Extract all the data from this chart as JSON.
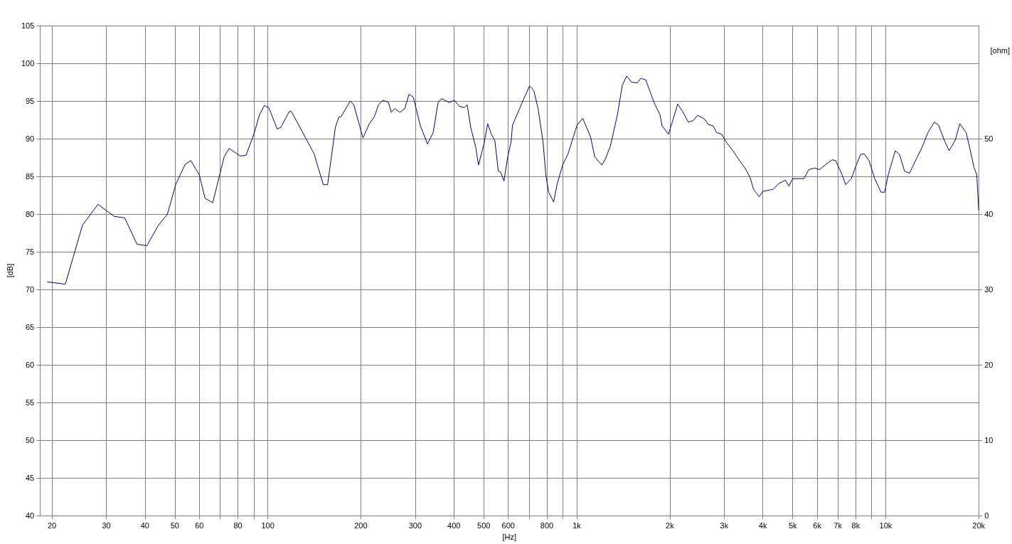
{
  "chart_data": {
    "type": "line",
    "xlabel": "[Hz]",
    "ylabel": "[dB]",
    "y2label": "[ohm]",
    "log": "x",
    "grid": true,
    "marker": "none",
    "line_style": "solid",
    "xlim": [
      18.3,
      20000
    ],
    "xticks": [
      20,
      30,
      40,
      50,
      60,
      {
        "value": 70,
        "label": null
      },
      80,
      {
        "value": 90,
        "label": null
      },
      100,
      200,
      300,
      400,
      500,
      600,
      {
        "value": 700,
        "label": null
      },
      800,
      {
        "value": 900,
        "label": null
      },
      {
        "value": 1000,
        "label": "1k"
      },
      {
        "value": 2000,
        "label": "2k"
      },
      {
        "value": 3000,
        "label": "3k"
      },
      {
        "value": 4000,
        "label": "4k"
      },
      {
        "value": 5000,
        "label": "5k"
      },
      {
        "value": 6000,
        "label": "6k"
      },
      {
        "value": 7000,
        "label": "7k"
      },
      {
        "value": 8000,
        "label": "8k"
      },
      {
        "value": 9000,
        "label": null
      },
      {
        "value": 10000,
        "label": "10k"
      },
      {
        "value": 20000,
        "label": "20k"
      }
    ],
    "ylim": [
      40,
      105
    ],
    "yticks": [
      40,
      45,
      50,
      55,
      60,
      65,
      70,
      75,
      80,
      85,
      90,
      95,
      100,
      105
    ],
    "y2lim": [
      0,
      65
    ],
    "y2ticks": [
      0,
      10,
      20,
      30,
      40,
      50
    ],
    "series": [
      {
        "color": "#000080",
        "x": [
          19.3,
          22.1,
          25.1,
          28.2,
          31.8,
          34.4,
          37.7,
          40.6,
          44.2,
          47.3,
          50.4,
          54.0,
          56.3,
          60.0,
          62.6,
          66.3,
          72.2,
          74.9,
          81.5,
          85.0,
          90.1,
          94.0,
          97.5,
          100.7,
          107.2,
          110.1,
          117.3,
          119.2,
          132.5,
          141.1,
          151.2,
          156.1,
          165.4,
          169.8,
          172.5,
          184.8,
          189.7,
          203.2,
          213.1,
          221.1,
          228.2,
          235.6,
          245.7,
          250.9,
          257.7,
          267.4,
          277.5,
          286.4,
          295.6,
          311.7,
          328.6,
          342.7,
          355.6,
          365.1,
          387.0,
          401.6,
          416.7,
          432.4,
          441.7,
          453.5,
          470.6,
          480.6,
          501.2,
          514.6,
          528.5,
          542.6,
          557.2,
          566.1,
          581.3,
          596.9,
          612.8,
          619.3,
          653.0,
          670.5,
          703.1,
          725.8,
          749.2,
          777.3,
          793.9,
          810.9,
          841.4,
          864.0,
          901.4,
          935.3,
          1002,
          1045,
          1107,
          1143,
          1205,
          1237,
          1284,
          1354,
          1404,
          1450,
          1504,
          1569,
          1612,
          1672,
          1735,
          1791,
          1858,
          1888,
          1980,
          2044,
          2121,
          2200,
          2296,
          2382,
          2459,
          2593,
          2662,
          2762,
          2836,
          2943,
          3037,
          3202,
          3376,
          3503,
          3635,
          3733,
          3894,
          3998,
          4328,
          4492,
          4734,
          4861,
          4992,
          5431,
          5636,
          5879,
          6101,
          6500,
          6708,
          6888,
          7224,
          7417,
          7737,
          8029,
          8286,
          8509,
          8828,
          9210,
          9659,
          9917,
          10183,
          10735,
          11082,
          11500,
          11933,
          12450,
          13122,
          13690,
          14356,
          14820,
          15540,
          16040,
          16820,
          17360,
          18210,
          18790,
          19300,
          19710,
          20000
        ],
        "values": [
          71.0,
          70.7,
          78.5,
          81.3,
          79.7,
          79.5,
          76.0,
          75.8,
          78.5,
          80.0,
          84.0,
          86.6,
          87.1,
          85.2,
          82.1,
          81.5,
          87.6,
          88.7,
          87.7,
          87.8,
          90.6,
          93.2,
          94.4,
          94.1,
          91.3,
          91.5,
          93.6,
          93.6,
          90.1,
          88.0,
          83.9,
          83.9,
          91.5,
          92.9,
          92.9,
          95.0,
          94.5,
          90.1,
          92.0,
          92.9,
          94.5,
          95.1,
          94.8,
          93.5,
          94.0,
          93.5,
          94.0,
          95.9,
          95.5,
          91.7,
          89.3,
          90.8,
          94.8,
          95.3,
          94.8,
          95.1,
          94.3,
          94.1,
          94.5,
          91.5,
          88.9,
          86.5,
          89.4,
          92.0,
          90.6,
          89.8,
          85.7,
          85.6,
          84.4,
          87.5,
          89.6,
          91.8,
          94.0,
          95.1,
          97.0,
          96.4,
          94.0,
          89.6,
          85.2,
          82.9,
          81.6,
          84.0,
          86.6,
          87.9,
          91.8,
          92.7,
          90.3,
          87.6,
          86.5,
          87.3,
          89.0,
          93.2,
          97.1,
          98.3,
          97.5,
          97.4,
          98.0,
          97.8,
          96.0,
          94.5,
          93.2,
          91.7,
          90.6,
          92.4,
          94.6,
          93.6,
          92.2,
          92.4,
          93.1,
          92.6,
          91.9,
          91.7,
          90.8,
          90.6,
          89.6,
          88.4,
          87.0,
          86.1,
          84.9,
          83.3,
          82.3,
          83.0,
          83.3,
          84.0,
          84.5,
          83.7,
          84.7,
          84.7,
          85.9,
          86.1,
          85.9,
          86.8,
          87.2,
          87.1,
          85.2,
          83.9,
          84.7,
          86.5,
          87.9,
          88.0,
          87.1,
          84.7,
          82.9,
          82.9,
          85.2,
          88.4,
          87.9,
          85.7,
          85.4,
          87.0,
          88.9,
          90.8,
          92.2,
          91.8,
          89.6,
          88.4,
          89.9,
          92.0,
          90.8,
          88.4,
          86.2,
          85.2,
          80.5
        ]
      }
    ]
  }
}
